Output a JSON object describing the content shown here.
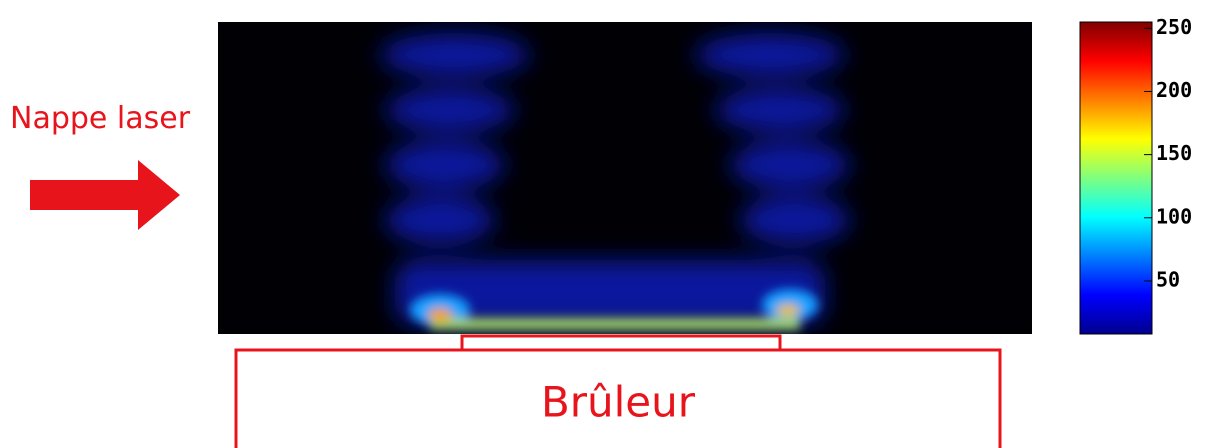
{
  "chart_data": {
    "type": "heatmap",
    "annotations": {
      "laser": "Nappe laser",
      "burner": "Brûleur"
    },
    "colorbar": {
      "clim": [
        8,
        255
      ],
      "ticks": [
        50,
        100,
        150,
        200,
        250
      ]
    }
  }
}
